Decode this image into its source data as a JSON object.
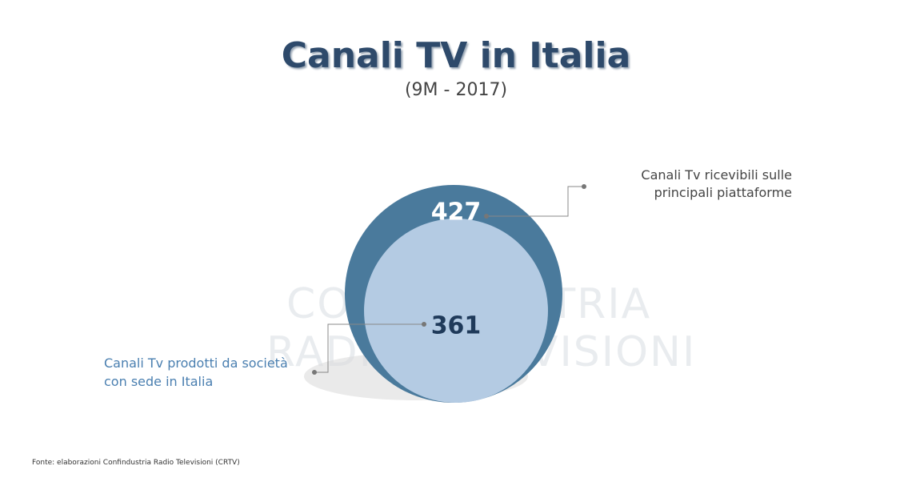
{
  "chart_data": {
    "type": "nested-circles",
    "title": "Canali TV in Italia",
    "subtitle": "(9M - 2017)",
    "categories": [
      "Canali Tv ricevibili sulle principali piattaforme",
      "Canali Tv prodotti da società con sede in Italia"
    ],
    "values": [
      427,
      361
    ],
    "colors": [
      "#4a7a9c",
      "#b4cbe3"
    ],
    "watermark": [
      "CONFINDUSTRIA",
      "RADIO TELEVISIONI"
    ],
    "source": "Fonte: elaborazioni Confindustria Radio Televisioni (CRTV)"
  }
}
